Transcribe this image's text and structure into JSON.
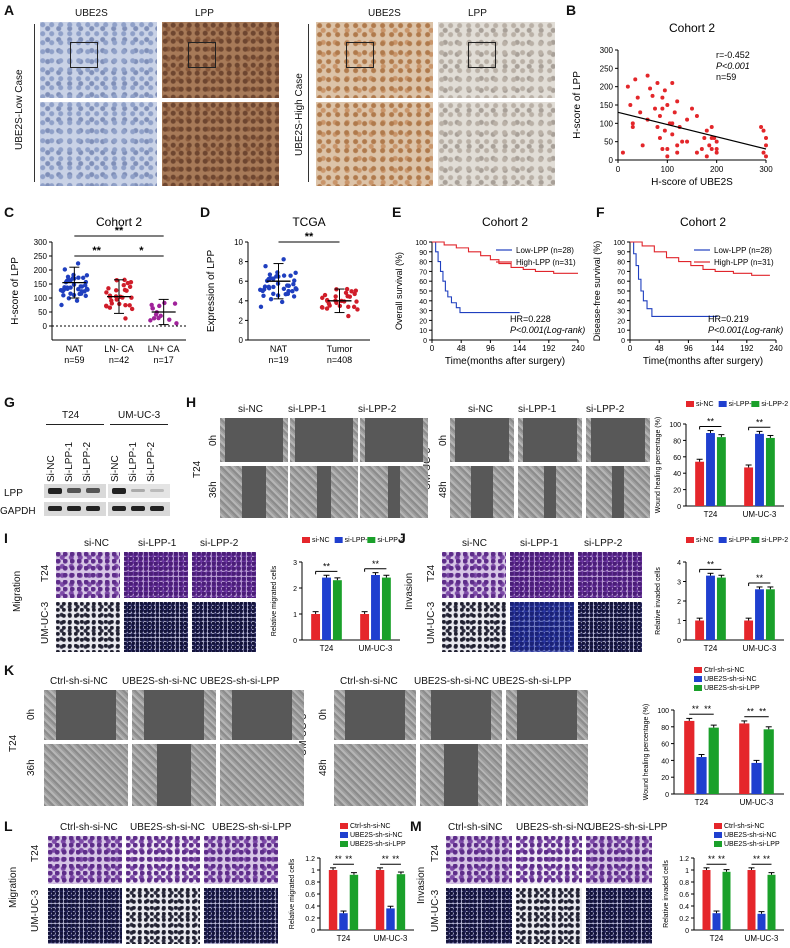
{
  "panels": [
    "A",
    "B",
    "C",
    "D",
    "E",
    "F",
    "G",
    "H",
    "I",
    "J",
    "K",
    "L",
    "M"
  ],
  "A": {
    "col_labels": [
      "UBE2S",
      "LPP",
      "UBE2S",
      "LPP"
    ],
    "row_labels": [
      "UBE2S-Low Case",
      "UBE2S-High Case"
    ]
  },
  "B": {
    "title": "Cohort 2",
    "stats": [
      "r=-0.452",
      "P<0.001",
      "n=59"
    ]
  },
  "C": {
    "title": "Cohort 2",
    "groups": [
      "NAT",
      "LN- CA",
      "LN+ CA"
    ],
    "ns": [
      "n=59",
      "n=42",
      "n=17"
    ],
    "sig": [
      "**",
      "**",
      "*"
    ]
  },
  "D": {
    "title": "TCGA",
    "groups": [
      "NAT",
      "Tumor"
    ],
    "ns": [
      "n=19",
      "n=408"
    ],
    "sig": "**"
  },
  "E": {
    "title": "Cohort 2",
    "legend": [
      "Low-LPP (n=28)",
      "High-LPP (n=31)"
    ],
    "hr": "HR=0.228",
    "p": "P<0.001(Log-rank)"
  },
  "F": {
    "title": "Cohort 2",
    "legend": [
      "Low-LPP (n=28)",
      "High-LPP (n=31)"
    ],
    "hr": "HR=0.219",
    "p": "P<0.001(Log-rank)"
  },
  "G": {
    "cells": [
      "T24",
      "UM-UC-3"
    ],
    "lanes": [
      "Si-NC",
      "Si-LPP-1",
      "Si-LPP-2",
      "Si-NC",
      "Si-LPP-1",
      "Si-LPP-2"
    ],
    "rows": [
      "LPP",
      "GAPDH"
    ]
  },
  "H": {
    "cols": [
      "si-NC",
      "si-LPP-1",
      "si-LPP-2"
    ],
    "times_t24": [
      "0h",
      "36h"
    ],
    "times_um": [
      "0h",
      "48h"
    ],
    "cells": [
      "T24",
      "UM-UC-3"
    ]
  },
  "I": {
    "side": "Migration",
    "cols": [
      "si-NC",
      "si-LPP-1",
      "si-LPP-2"
    ],
    "cells": [
      "T24",
      "UM-UC-3"
    ]
  },
  "J": {
    "side": "Invasion",
    "cols": [
      "si-NC",
      "si-LPP-1",
      "si-LPP-2"
    ],
    "cells": [
      "T24",
      "UM-UC-3"
    ]
  },
  "K": {
    "cols": [
      "Ctrl-sh-si-NC",
      "UBE2S-sh-si-NC",
      "UBE2S-sh-si-LPP"
    ],
    "times_t24": [
      "0h",
      "36h"
    ],
    "times_um": [
      "0h",
      "48h"
    ],
    "cells": [
      "T24",
      "UM-UC-3"
    ]
  },
  "L": {
    "side": "Migration",
    "cols": [
      "Ctrl-sh-si-NC",
      "UBE2S-sh-si-NC",
      "UBE2S-sh-si-LPP"
    ],
    "cells": [
      "T24",
      "UM-UC-3"
    ]
  },
  "M": {
    "side": "Invasion",
    "cols": [
      "Ctrl-sh-siNC",
      "UBE2S-sh-si-NC",
      "UBE2S-sh-si-LPP"
    ],
    "cells": [
      "T24",
      "UM-UC-3"
    ]
  },
  "chart_data": [
    {
      "id": "B",
      "type": "scatter",
      "title": "Cohort 2",
      "xlabel": "H-score of UBE2S",
      "ylabel": "H-score of LPP",
      "xlim": [
        0,
        300
      ],
      "ylim": [
        0,
        300
      ],
      "xticks": [
        0,
        100,
        200,
        300
      ],
      "yticks": [
        0,
        50,
        100,
        150,
        200,
        250,
        300
      ],
      "x": [
        10,
        20,
        25,
        30,
        35,
        40,
        45,
        50,
        60,
        65,
        70,
        75,
        80,
        85,
        85,
        90,
        90,
        95,
        95,
        100,
        100,
        105,
        110,
        110,
        115,
        120,
        120,
        125,
        130,
        140,
        150,
        160,
        170,
        175,
        180,
        180,
        185,
        190,
        190,
        195,
        200,
        200,
        30,
        60,
        80,
        100,
        120,
        140,
        160,
        190,
        200,
        290,
        295,
        295,
        300,
        300,
        300,
        90,
        110
      ],
      "y": [
        20,
        200,
        150,
        90,
        220,
        170,
        130,
        40,
        110,
        195,
        175,
        140,
        210,
        120,
        60,
        170,
        30,
        190,
        80,
        150,
        10,
        100,
        210,
        70,
        130,
        20,
        160,
        90,
        50,
        110,
        140,
        120,
        30,
        60,
        80,
        10,
        40,
        90,
        30,
        60,
        20,
        50,
        100,
        230,
        90,
        30,
        40,
        50,
        20,
        60,
        30,
        90,
        20,
        80,
        40,
        10,
        60,
        140,
        100
      ],
      "trend": [
        [
          0,
          130
        ],
        [
          300,
          30
        ]
      ]
    },
    {
      "id": "C",
      "type": "scatter",
      "title": "Cohort 2",
      "ylabel": "H-score of LPP",
      "categories": [
        "NAT",
        "LN- CA",
        "LN+ CA"
      ],
      "ylim": [
        -50,
        300
      ],
      "yticks": [
        0,
        50,
        100,
        150,
        200,
        250,
        300
      ],
      "mean": [
        155,
        105,
        50
      ],
      "sd": [
        55,
        60,
        45
      ],
      "colors": [
        "#1f3fbf",
        "#d01d2a",
        "#a0229a"
      ]
    },
    {
      "id": "D",
      "type": "scatter",
      "title": "TCGA",
      "ylabel": "Expression of LPP",
      "categories": [
        "NAT",
        "Tumor"
      ],
      "ylim": [
        0,
        10
      ],
      "yticks": [
        0,
        2,
        4,
        6,
        8,
        10
      ],
      "mean": [
        6,
        4
      ],
      "sd": [
        1.8,
        1.2
      ],
      "colors": [
        "#1f3fbf",
        "#d01d2a"
      ]
    },
    {
      "id": "E",
      "type": "line",
      "title": "Cohort 2",
      "xlabel": "Time(months after surgery)",
      "ylabel": "Overall survival (%)",
      "xlim": [
        0,
        240
      ],
      "xticks": [
        0,
        48,
        96,
        144,
        192,
        240
      ],
      "ylim": [
        0,
        100
      ],
      "yticks": [
        0,
        10,
        20,
        30,
        40,
        50,
        60,
        70,
        80,
        90,
        100
      ],
      "series": [
        {
          "name": "Low-LPP (n=28)",
          "color": "#1f3fbf",
          "x": [
            0,
            6,
            10,
            14,
            18,
            22,
            26,
            32,
            40,
            46,
            144
          ],
          "y": [
            100,
            90,
            80,
            70,
            60,
            50,
            44,
            38,
            33,
            28,
            28
          ]
        },
        {
          "name": "High-LPP (n=31)",
          "color": "#e0252b",
          "x": [
            0,
            20,
            40,
            60,
            80,
            96,
            110,
            130,
            150,
            170,
            200,
            240
          ],
          "y": [
            100,
            97,
            94,
            90,
            86,
            82,
            78,
            74,
            72,
            70,
            68,
            68
          ]
        }
      ]
    },
    {
      "id": "F",
      "type": "line",
      "title": "Cohort 2",
      "xlabel": "Time(months after surgery)",
      "ylabel": "Disease-free survival (%)",
      "xlim": [
        0,
        240
      ],
      "xticks": [
        0,
        48,
        96,
        144,
        192,
        240
      ],
      "ylim": [
        0,
        100
      ],
      "yticks": [
        0,
        10,
        20,
        30,
        40,
        50,
        60,
        70,
        80,
        90,
        100
      ],
      "series": [
        {
          "name": "Low-LPP (n=28)",
          "color": "#1f3fbf",
          "x": [
            0,
            6,
            10,
            14,
            18,
            22,
            28,
            36,
            144
          ],
          "y": [
            100,
            88,
            76,
            62,
            50,
            40,
            32,
            24,
            24
          ]
        },
        {
          "name": "High-LPP (n=31)",
          "color": "#e0252b",
          "x": [
            0,
            20,
            40,
            60,
            80,
            100,
            120,
            140,
            170,
            200,
            230
          ],
          "y": [
            100,
            96,
            90,
            84,
            80,
            76,
            72,
            70,
            68,
            66,
            66
          ]
        }
      ]
    },
    {
      "id": "H",
      "type": "bar",
      "ylabel": "Wound healing percentage (%)",
      "categories": [
        "T24",
        "UM-UC-3"
      ],
      "ylim": [
        0,
        100
      ],
      "yticks": [
        0,
        20,
        40,
        60,
        80,
        100
      ],
      "series": [
        {
          "name": "si-NC",
          "color": "#e5262b",
          "values": [
            54,
            47
          ]
        },
        {
          "name": "si-LPP-1",
          "color": "#1f3fcf",
          "values": [
            89,
            88
          ]
        },
        {
          "name": "si-LPP-2",
          "color": "#1aa02a",
          "values": [
            84,
            83
          ]
        }
      ]
    },
    {
      "id": "I",
      "type": "bar",
      "ylabel": "Relative migrated cells",
      "categories": [
        "T24",
        "UM-UC-3"
      ],
      "ylim": [
        0,
        3
      ],
      "yticks": [
        0,
        1,
        2,
        3
      ],
      "series": [
        {
          "name": "si-NC",
          "color": "#e5262b",
          "values": [
            1,
            1
          ]
        },
        {
          "name": "si-LPP-1",
          "color": "#1f3fcf",
          "values": [
            2.4,
            2.5
          ]
        },
        {
          "name": "si-LPP-2",
          "color": "#1aa02a",
          "values": [
            2.3,
            2.4
          ]
        }
      ]
    },
    {
      "id": "J",
      "type": "bar",
      "ylabel": "Relative invaded cells",
      "categories": [
        "T24",
        "UM-UC-3"
      ],
      "ylim": [
        0,
        4
      ],
      "yticks": [
        0,
        1,
        2,
        3,
        4
      ],
      "series": [
        {
          "name": "si-NC",
          "color": "#e5262b",
          "values": [
            1,
            1
          ]
        },
        {
          "name": "si-LPP-1",
          "color": "#1f3fcf",
          "values": [
            3.3,
            2.6
          ]
        },
        {
          "name": "si-LPP-2",
          "color": "#1aa02a",
          "values": [
            3.2,
            2.6
          ]
        }
      ]
    },
    {
      "id": "K",
      "type": "bar",
      "ylabel": "Wound healing percentage (%)",
      "categories": [
        "T24",
        "UM-UC-3"
      ],
      "ylim": [
        0,
        100
      ],
      "yticks": [
        0,
        20,
        40,
        60,
        80,
        100
      ],
      "series": [
        {
          "name": "Ctrl-sh-si-NC",
          "color": "#e5262b",
          "values": [
            87,
            84
          ]
        },
        {
          "name": "UBE2S-sh-si-NC",
          "color": "#1f3fcf",
          "values": [
            44,
            37
          ]
        },
        {
          "name": "UBE2S-sh-si-LPP",
          "color": "#1aa02a",
          "values": [
            79,
            77
          ]
        }
      ]
    },
    {
      "id": "L",
      "type": "bar",
      "ylabel": "Relative migrated cells",
      "categories": [
        "T24",
        "UM-UC-3"
      ],
      "ylim": [
        0,
        1.2
      ],
      "yticks": [
        0,
        0.2,
        0.4,
        0.6,
        0.8,
        1.0,
        1.2
      ],
      "series": [
        {
          "name": "Ctrl-sh-si-NC",
          "color": "#e5262b",
          "values": [
            1,
            1
          ]
        },
        {
          "name": "UBE2S-sh-si-NC",
          "color": "#1f3fcf",
          "values": [
            0.28,
            0.36
          ]
        },
        {
          "name": "UBE2S-sh-si-LPP",
          "color": "#1aa02a",
          "values": [
            0.92,
            0.93
          ]
        }
      ]
    },
    {
      "id": "M",
      "type": "bar",
      "ylabel": "Relative invaded cells",
      "categories": [
        "T24",
        "UM-UC-3"
      ],
      "ylim": [
        0,
        1.2
      ],
      "yticks": [
        0,
        0.2,
        0.4,
        0.6,
        0.8,
        1.0,
        1.2
      ],
      "series": [
        {
          "name": "Ctrl-sh-si-NC",
          "color": "#e5262b",
          "values": [
            1,
            1
          ]
        },
        {
          "name": "UBE2S-sh-si-NC",
          "color": "#1f3fcf",
          "values": [
            0.28,
            0.27
          ]
        },
        {
          "name": "UBE2S-sh-si-LPP",
          "color": "#1aa02a",
          "values": [
            0.97,
            0.92
          ]
        }
      ]
    }
  ]
}
